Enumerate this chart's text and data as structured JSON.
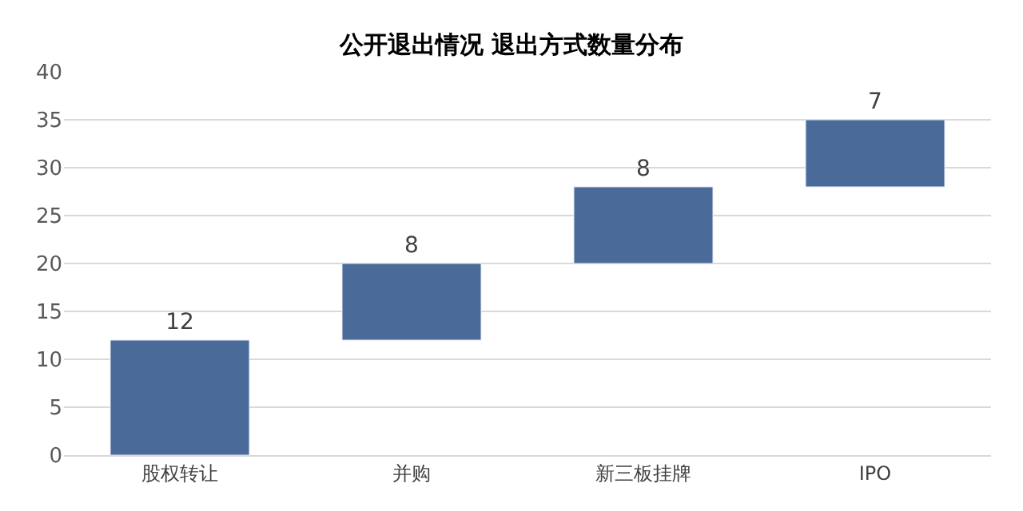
{
  "chart_data": {
    "type": "bar",
    "title": "公开退出情况 退出方式数量分布",
    "categories": [
      "股权转让",
      "并购",
      "新三板挂牌",
      "IPO"
    ],
    "values": [
      12,
      8,
      8,
      7
    ],
    "base": [
      0,
      12,
      20,
      28
    ],
    "color": "#4a6a9a",
    "data_labels": true,
    "ylim": [
      0,
      40
    ],
    "yticks": [
      0,
      5,
      10,
      15,
      20,
      25,
      30,
      35,
      40
    ],
    "grid": "y",
    "legend": false
  }
}
